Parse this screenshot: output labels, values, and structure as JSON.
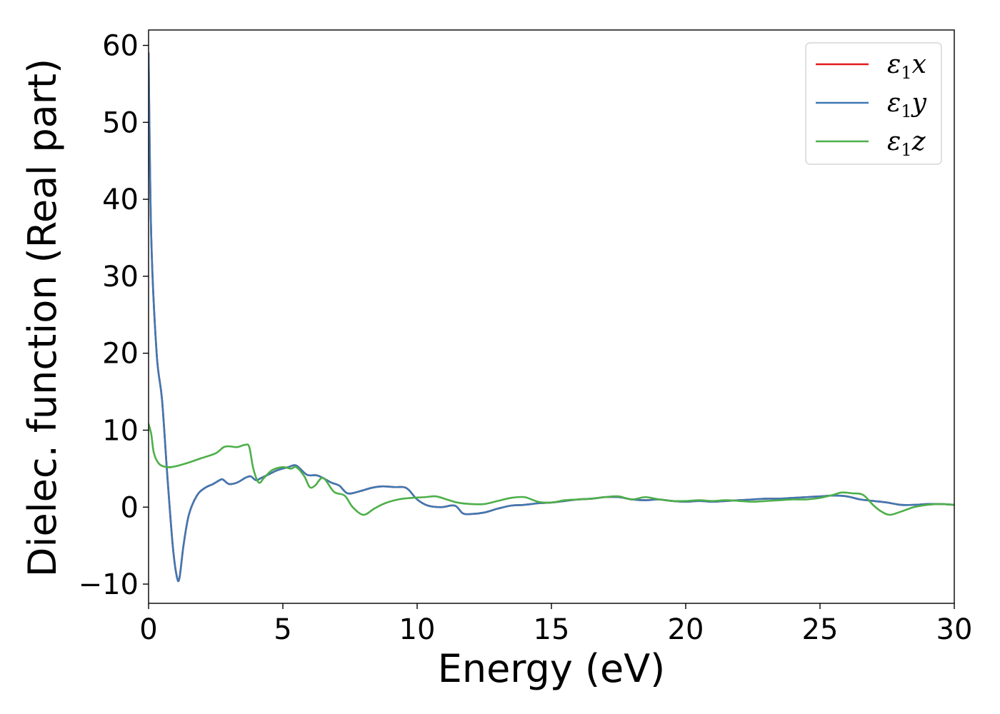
{
  "chart_data": {
    "type": "line",
    "title": "",
    "xlabel": "Energy (eV)",
    "ylabel": "Dielec. function (Real part)",
    "xlim": [
      0,
      30
    ],
    "ylim": [
      -12.5,
      62
    ],
    "xticks": [
      0,
      5,
      10,
      15,
      20,
      25,
      30
    ],
    "xtick_labels": [
      "0",
      "5",
      "10",
      "15",
      "20",
      "25",
      "30"
    ],
    "yticks": [
      -10,
      0,
      10,
      20,
      30,
      40,
      50,
      60
    ],
    "ytick_labels": [
      "−10",
      "0",
      "10",
      "20",
      "30",
      "40",
      "50",
      "60"
    ],
    "grid": false,
    "legend_position": "top-right",
    "series": [
      {
        "name": "ε1x",
        "legend_base": "ε",
        "legend_sub": "1",
        "legend_var": "x",
        "color": "#e41a1c",
        "x": [
          0,
          0.1,
          0.3,
          0.5,
          0.7,
          0.9,
          1.05,
          1.15,
          1.3,
          1.5,
          1.8,
          2.1,
          2.4,
          2.7,
          2.8,
          3.0,
          3.3,
          3.6,
          3.8,
          4.0,
          4.2,
          4.5,
          4.8,
          5.2,
          5.5,
          5.9,
          6.3,
          6.8,
          7.1,
          7.4,
          7.8,
          8.3,
          8.7,
          9.2,
          9.5,
          9.7,
          10.0,
          10.4,
          10.9,
          11.4,
          11.7,
          12.0,
          12.5,
          13.0,
          13.5,
          14.0,
          14.5,
          15.0,
          15.5,
          16.0,
          16.5,
          17.0,
          17.5,
          18.0,
          18.5,
          19.0,
          19.5,
          20.0,
          20.5,
          21.0,
          21.5,
          22.0,
          22.5,
          23.0,
          23.5,
          24.0,
          24.5,
          25.0,
          25.5,
          26.0,
          26.5,
          27.0,
          27.5,
          28.0,
          28.5,
          29.0,
          29.5,
          30.0
        ],
        "y": [
          59,
          35,
          20,
          14,
          4,
          -5,
          -9,
          -9.2,
          -5,
          -1,
          1.5,
          2.5,
          3,
          3.6,
          3.5,
          3.0,
          3.2,
          3.8,
          4.0,
          3.5,
          3.8,
          4.3,
          4.8,
          5.2,
          5.4,
          4.2,
          4.1,
          3.2,
          2.8,
          1.8,
          2.0,
          2.5,
          2.7,
          2.6,
          2.6,
          2.2,
          1.0,
          0.2,
          0,
          0.2,
          -0.8,
          -0.9,
          -0.7,
          -0.2,
          0.2,
          0.3,
          0.5,
          0.6,
          0.8,
          1.0,
          1.1,
          1.3,
          1.3,
          1.0,
          0.9,
          1.0,
          0.8,
          0.7,
          0.8,
          0.7,
          0.8,
          0.9,
          1.0,
          1.1,
          1.1,
          1.2,
          1.3,
          1.4,
          1.5,
          1.4,
          1.0,
          0.8,
          0.6,
          0.3,
          0.3,
          0.4,
          0.4,
          0.3
        ]
      },
      {
        "name": "ε1y",
        "legend_base": "ε",
        "legend_sub": "1",
        "legend_var": "y",
        "color": "#3e78b2",
        "x": [
          0,
          0.1,
          0.3,
          0.5,
          0.7,
          0.9,
          1.05,
          1.15,
          1.3,
          1.5,
          1.8,
          2.1,
          2.4,
          2.7,
          2.8,
          3.0,
          3.3,
          3.6,
          3.8,
          4.0,
          4.2,
          4.5,
          4.8,
          5.2,
          5.5,
          5.9,
          6.3,
          6.8,
          7.1,
          7.4,
          7.8,
          8.3,
          8.7,
          9.2,
          9.5,
          9.7,
          10.0,
          10.4,
          10.9,
          11.4,
          11.7,
          12.0,
          12.5,
          13.0,
          13.5,
          14.0,
          14.5,
          15.0,
          15.5,
          16.0,
          16.5,
          17.0,
          17.5,
          18.0,
          18.5,
          19.0,
          19.5,
          20.0,
          20.5,
          21.0,
          21.5,
          22.0,
          22.5,
          23.0,
          23.5,
          24.0,
          24.5,
          25.0,
          25.5,
          26.0,
          26.5,
          27.0,
          27.5,
          28.0,
          28.5,
          29.0,
          29.5,
          30.0
        ],
        "y": [
          59,
          35,
          20,
          14,
          4,
          -5,
          -9,
          -9.2,
          -5,
          -1,
          1.5,
          2.5,
          3,
          3.6,
          3.5,
          3.0,
          3.2,
          3.8,
          4.0,
          3.5,
          3.8,
          4.3,
          4.8,
          5.2,
          5.4,
          4.2,
          4.1,
          3.2,
          2.8,
          1.8,
          2.0,
          2.5,
          2.7,
          2.6,
          2.6,
          2.2,
          1.0,
          0.2,
          0,
          0.2,
          -0.8,
          -0.9,
          -0.7,
          -0.2,
          0.2,
          0.3,
          0.5,
          0.6,
          0.8,
          1.0,
          1.1,
          1.3,
          1.3,
          1.0,
          0.9,
          1.0,
          0.8,
          0.7,
          0.8,
          0.7,
          0.8,
          0.9,
          1.0,
          1.1,
          1.1,
          1.2,
          1.3,
          1.4,
          1.5,
          1.4,
          1.0,
          0.8,
          0.6,
          0.3,
          0.3,
          0.4,
          0.4,
          0.3
        ]
      },
      {
        "name": "ε1z",
        "legend_base": "ε",
        "legend_sub": "1",
        "legend_var": "z",
        "color": "#4daf4a",
        "x": [
          0,
          0.1,
          0.2,
          0.4,
          0.7,
          1.0,
          1.5,
          2.0,
          2.5,
          2.8,
          3.0,
          3.3,
          3.6,
          3.75,
          3.9,
          4.1,
          4.3,
          4.6,
          5.0,
          5.3,
          5.5,
          5.8,
          6.0,
          6.2,
          6.5,
          6.9,
          7.3,
          7.6,
          8.0,
          8.4,
          8.8,
          9.3,
          9.8,
          10.3,
          10.7,
          11.1,
          11.5,
          12.0,
          12.5,
          13.0,
          13.5,
          14.0,
          14.5,
          15.0,
          15.5,
          16.0,
          16.5,
          17.0,
          17.5,
          18.0,
          18.5,
          19.0,
          19.5,
          20.0,
          20.5,
          21.0,
          21.5,
          22.0,
          22.5,
          23.0,
          23.5,
          24.0,
          24.5,
          25.0,
          25.5,
          25.8,
          26.2,
          26.6,
          27.0,
          27.3,
          27.6,
          28.0,
          28.5,
          29.0,
          29.5,
          30.0
        ],
        "y": [
          10.8,
          9.5,
          7.0,
          5.6,
          5.2,
          5.3,
          5.8,
          6.4,
          7.0,
          7.8,
          7.9,
          7.8,
          8.1,
          7.8,
          5.0,
          3.2,
          3.8,
          4.8,
          5.2,
          5.0,
          5.2,
          4.0,
          2.6,
          2.8,
          3.8,
          2.0,
          1.5,
          0,
          -1.0,
          -0.2,
          0.5,
          1.0,
          1.2,
          1.3,
          1.4,
          1.0,
          0.6,
          0.4,
          0.4,
          0.8,
          1.2,
          1.3,
          0.7,
          0.6,
          0.9,
          1.0,
          1.1,
          1.3,
          1.4,
          1.0,
          1.3,
          1.0,
          0.8,
          0.8,
          0.9,
          0.8,
          0.9,
          0.8,
          0.7,
          0.8,
          0.9,
          1.0,
          1.0,
          1.2,
          1.6,
          1.9,
          1.8,
          1.6,
          0.2,
          -0.6,
          -1.0,
          -0.6,
          0.0,
          0.3,
          0.4,
          0.3
        ]
      }
    ]
  }
}
